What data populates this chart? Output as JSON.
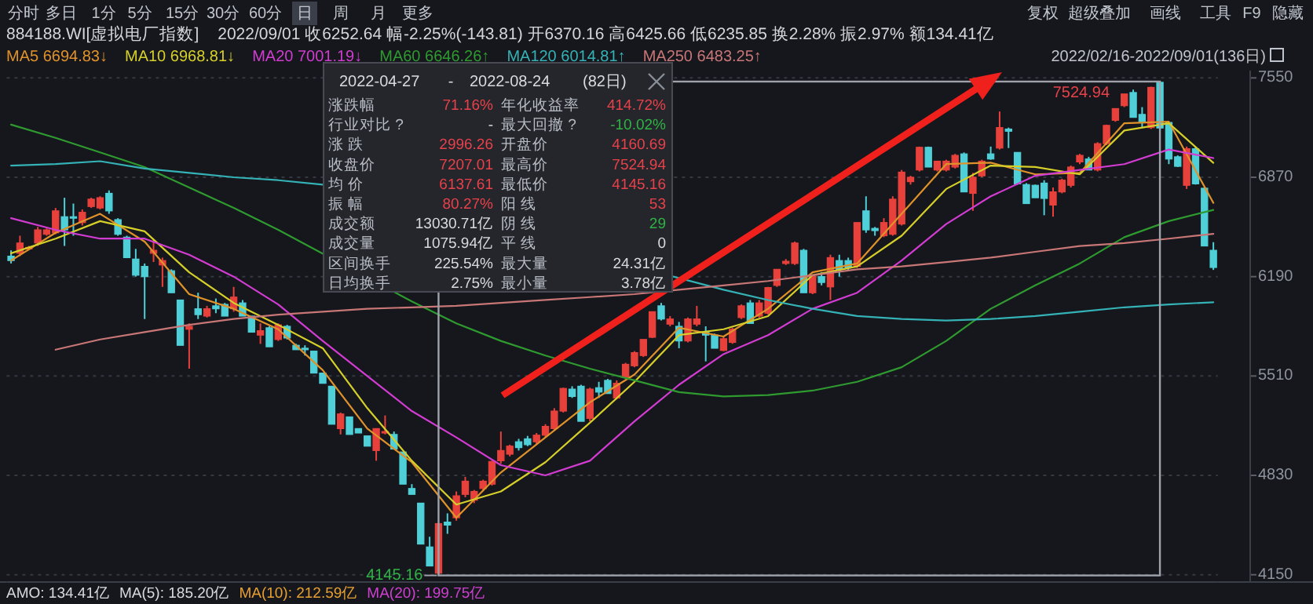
{
  "chart_data": {
    "type": "candlestick",
    "title": "884188.WI[虚拟电厂指数]",
    "subtitle": "2022/09/01 收6252.64 幅-2.25%(-143.81) 开6370.16 高6425.66 低6235.85 换2.28% 振2.97% 额134.41亿",
    "categories": [
      null,
      null,
      null,
      null,
      null,
      null,
      null,
      null,
      null,
      null,
      null,
      null,
      null,
      null,
      null,
      null,
      null,
      null,
      null,
      null,
      null,
      null,
      null,
      null,
      null,
      null,
      null,
      null,
      null,
      null,
      null,
      null,
      null,
      null,
      null,
      null,
      null,
      null,
      null,
      null,
      null,
      null,
      null,
      null,
      null,
      null,
      null,
      null,
      null,
      null,
      null,
      null,
      null,
      null,
      null,
      null,
      null,
      null,
      null,
      null,
      null,
      null,
      null,
      null,
      null,
      null,
      null,
      null,
      null,
      null,
      null,
      null,
      null,
      null,
      null,
      null,
      null,
      null,
      null,
      null,
      null,
      null,
      null,
      null,
      null,
      null,
      null,
      null,
      null,
      null,
      null,
      null,
      null,
      null,
      null,
      null,
      null,
      null,
      null,
      null,
      null,
      null,
      null,
      null,
      null,
      null,
      null,
      null,
      null,
      null,
      null,
      null,
      null,
      null,
      null,
      null,
      null,
      null,
      null,
      null,
      null,
      null,
      null,
      null,
      null,
      null,
      null,
      null,
      null,
      null,
      null,
      null,
      null,
      null,
      null,
      null
    ],
    "ohlc": [
      [
        6330,
        6370,
        6280,
        6300
      ],
      [
        6350,
        6470,
        6330,
        6420
      ],
      [
        6380,
        6400,
        6370,
        6390
      ],
      [
        6420,
        6530,
        6400,
        6510
      ],
      [
        6480,
        6520,
        6470,
        6510
      ],
      [
        6490,
        6660,
        6480,
        6640
      ],
      [
        6600,
        6730,
        6400,
        6510
      ],
      [
        6600,
        6690,
        6470,
        6590
      ],
      [
        6560,
        6650,
        6540,
        6630
      ],
      [
        6670,
        6730,
        6660,
        6720
      ],
      [
        6660,
        6740,
        6650,
        6730
      ],
      [
        6760,
        6780,
        6620,
        6640
      ],
      [
        6580,
        6590,
        6470,
        6480
      ],
      [
        6460,
        6470,
        6320,
        6320
      ],
      [
        6310,
        6380,
        6190,
        6200
      ],
      [
        6260,
        6280,
        5900,
        6190
      ],
      [
        6350,
        6440,
        6290,
        6370
      ],
      [
        6270,
        6320,
        6120,
        6300
      ],
      [
        6230,
        6240,
        6080,
        6080
      ],
      [
        6030,
        6030,
        5720,
        5720
      ],
      [
        5830,
        5870,
        5560,
        5850
      ],
      [
        5970,
        6080,
        5900,
        5930
      ],
      [
        5920,
        5990,
        5910,
        5970
      ],
      [
        5990,
        6040,
        5940,
        5970
      ],
      [
        6000,
        6010,
        5920,
        5920
      ],
      [
        5970,
        6120,
        5950,
        6050
      ],
      [
        6010,
        6030,
        5920,
        5920
      ],
      [
        5920,
        5920,
        5810,
        5810
      ],
      [
        5790,
        5870,
        5730,
        5820
      ],
      [
        5840,
        5850,
        5710,
        5710
      ],
      [
        5760,
        5870,
        5750,
        5860
      ],
      [
        5850,
        5860,
        5760,
        5770
      ],
      [
        5720,
        5730,
        5690,
        5690
      ],
      [
        5700,
        5720,
        5650,
        5690
      ],
      [
        5680,
        5680,
        5530,
        5530
      ],
      [
        5530,
        5530,
        5460,
        5460
      ],
      [
        5440,
        5440,
        5180,
        5180
      ],
      [
        5150,
        5260,
        5110,
        5250
      ],
      [
        5230,
        5230,
        5110,
        5110
      ],
      [
        5150,
        5150,
        5120,
        5120
      ],
      [
        5100,
        5100,
        5030,
        5030
      ],
      [
        5000,
        5150,
        4930,
        5150
      ],
      [
        5120,
        5240,
        5110,
        5130
      ],
      [
        5110,
        5130,
        5010,
        5010
      ],
      [
        4990,
        4990,
        4770,
        4770
      ],
      [
        4740,
        4770,
        4700,
        4700
      ],
      [
        4640,
        4640,
        4360,
        4360
      ],
      [
        4340,
        4410,
        4210,
        4210
      ],
      [
        4160.69,
        4500,
        4145.16,
        4500
      ],
      [
        4510,
        4570,
        4430,
        4490
      ],
      [
        4540,
        4720,
        4520,
        4690
      ],
      [
        4700,
        4820,
        4680,
        4790
      ],
      [
        4660,
        4730,
        4640,
        4720
      ],
      [
        4740,
        4800,
        4720,
        4790
      ],
      [
        4770,
        4930,
        4760,
        4925
      ],
      [
        4930,
        5130,
        4910,
        5000
      ],
      [
        4975,
        5040,
        4960,
        5030
      ],
      [
        5060,
        5080,
        5000,
        5020
      ],
      [
        5080,
        5100,
        5030,
        5040
      ],
      [
        5060,
        5120,
        5040,
        5105
      ],
      [
        5105,
        5180,
        5090,
        5165
      ],
      [
        5150,
        5290,
        5140,
        5270
      ],
      [
        5270,
        5430,
        5260,
        5425
      ],
      [
        5420,
        5440,
        5360,
        5370
      ],
      [
        5440,
        5450,
        5200,
        5200
      ],
      [
        5220,
        5430,
        5200,
        5420
      ],
      [
        5430,
        5470,
        5360,
        5400
      ],
      [
        5480,
        5490,
        5390,
        5390
      ],
      [
        5360,
        5480,
        5350,
        5460
      ],
      [
        5500,
        5600,
        5490,
        5590
      ],
      [
        5580,
        5680,
        5570,
        5670
      ],
      [
        5650,
        5760,
        5640,
        5760
      ],
      [
        5775,
        5950,
        5770,
        5950
      ],
      [
        5990,
        6010,
        5890,
        5900
      ],
      [
        5865,
        5920,
        5850,
        5900
      ],
      [
        5850,
        5880,
        5700,
        5750
      ],
      [
        5750,
        5910,
        5740,
        5900
      ],
      [
        5865,
        5990,
        5850,
        5900
      ],
      [
        5810,
        5850,
        5610,
        5790
      ],
      [
        5790,
        5800,
        5700,
        5700
      ],
      [
        5685,
        5780,
        5680,
        5765
      ],
      [
        5740,
        5840,
        5730,
        5830
      ],
      [
        5910,
        6000,
        5900,
        5990
      ],
      [
        6010,
        6030,
        5870,
        5870
      ],
      [
        5920,
        6030,
        5910,
        6010
      ],
      [
        5940,
        6120,
        5930,
        6115
      ],
      [
        6130,
        6240,
        6120,
        6240
      ],
      [
        6280,
        6310,
        6270,
        6295
      ],
      [
        6280,
        6430,
        6270,
        6420
      ],
      [
        6370,
        6380,
        6080,
        6080
      ],
      [
        6080,
        6190,
        6070,
        6190
      ],
      [
        6190,
        6220,
        6130,
        6150
      ],
      [
        6120,
        6340,
        6030,
        6320
      ],
      [
        6300,
        6340,
        6190,
        6240
      ],
      [
        6300,
        6320,
        6230,
        6250
      ],
      [
        6260,
        6560,
        6250,
        6560
      ],
      [
        6640,
        6740,
        6490,
        6510
      ],
      [
        6520,
        6530,
        6470,
        6505
      ],
      [
        6470,
        6590,
        6460,
        6560
      ],
      [
        6480,
        6740,
        6470,
        6720
      ],
      [
        6550,
        6920,
        6540,
        6905
      ],
      [
        6840,
        6880,
        6820,
        6870
      ],
      [
        6920,
        7080,
        6910,
        7075
      ],
      [
        7075,
        7080,
        6940,
        6940
      ],
      [
        6920,
        6980,
        6910,
        6980
      ],
      [
        6920,
        6990,
        6910,
        6980
      ],
      [
        6940,
        7030,
        6930,
        7020
      ],
      [
        7030,
        7040,
        6770,
        6770
      ],
      [
        6760,
        6900,
        6640,
        6870
      ],
      [
        6880,
        6990,
        6870,
        6980
      ],
      [
        7030,
        7080,
        6990,
        6995
      ],
      [
        7070,
        7320,
        7060,
        7210
      ],
      [
        7200,
        7210,
        7070,
        7185
      ],
      [
        7040,
        7040,
        6820,
        6825
      ],
      [
        6820,
        6830,
        6690,
        6690
      ],
      [
        6815,
        6820,
        6730,
        6730
      ],
      [
        6830,
        6850,
        6610,
        6725
      ],
      [
        6680,
        6800,
        6600,
        6770
      ],
      [
        6770,
        6860,
        6760,
        6850
      ],
      [
        6815,
        6950,
        6800,
        6940
      ],
      [
        6975,
        7030,
        6960,
        7020
      ],
      [
        6995,
        7010,
        6920,
        6920
      ],
      [
        6920,
        7110,
        6910,
        7100
      ],
      [
        7100,
        7230,
        7090,
        7225
      ],
      [
        7260,
        7340,
        7250,
        7340
      ],
      [
        7360,
        7440,
        7350,
        7440
      ],
      [
        7450,
        7470,
        7280,
        7280
      ],
      [
        7300,
        7350,
        7210,
        7250
      ],
      [
        7210,
        7490,
        7200,
        7485
      ],
      [
        7520,
        7524.94,
        7190,
        7207.01
      ],
      [
        7245,
        7250,
        6960,
        6995
      ],
      [
        7010,
        7020,
        6940,
        6945
      ],
      [
        6815,
        7080,
        6790,
        7065
      ],
      [
        7065,
        7080,
        6820,
        6825
      ],
      [
        6795,
        6800,
        6400,
        6400
      ],
      [
        6370.16,
        6425.66,
        6235.85,
        6252.64
      ]
    ],
    "series": [
      {
        "type": "line",
        "name": "MA5 6694.83↓",
        "color": "#e0922a",
        "values": [
          6300,
          null,
          null,
          null,
          null,
          6490,
          null,
          null,
          null,
          null,
          6620,
          null,
          null,
          null,
          null,
          6430,
          null,
          null,
          null,
          null,
          6070,
          null,
          null,
          null,
          null,
          5970,
          null,
          null,
          null,
          null,
          5830,
          null,
          null,
          null,
          null,
          5550,
          null,
          null,
          null,
          null,
          5150,
          null,
          null,
          null,
          null,
          4920,
          null,
          null,
          null,
          null,
          4540,
          null,
          null,
          null,
          null,
          4850,
          null,
          null,
          null,
          null,
          5090,
          null,
          null,
          null,
          null,
          5330,
          null,
          null,
          null,
          null,
          5520,
          null,
          null,
          null,
          null,
          5840,
          null,
          null,
          null,
          null,
          5780,
          null,
          null,
          null,
          null,
          5970,
          null,
          null,
          null,
          null,
          6220,
          null,
          null,
          null,
          null,
          6280,
          null,
          null,
          null,
          null,
          6620,
          null,
          null,
          null,
          null,
          6960,
          null,
          null,
          null,
          null,
          6970,
          null,
          null,
          null,
          null,
          6890,
          null,
          null,
          null,
          null,
          6900,
          null,
          null,
          null,
          null,
          7240,
          null,
          null,
          null,
          null,
          7250,
          null,
          null,
          null,
          null,
          6694.83
        ]
      },
      {
        "type": "line",
        "name": "MA10 6968.81↓",
        "color": "#d6cf2a",
        "values": [
          6350,
          null,
          null,
          null,
          null,
          6450,
          null,
          null,
          null,
          null,
          6570,
          null,
          null,
          null,
          null,
          6500,
          null,
          null,
          null,
          null,
          6220,
          null,
          null,
          null,
          null,
          6010,
          null,
          null,
          null,
          null,
          5860,
          null,
          null,
          null,
          null,
          5700,
          null,
          null,
          null,
          null,
          5290,
          null,
          null,
          null,
          null,
          4930,
          null,
          null,
          null,
          null,
          4630,
          null,
          null,
          null,
          null,
          4720,
          null,
          null,
          null,
          null,
          4920,
          null,
          null,
          null,
          null,
          5190,
          null,
          null,
          null,
          null,
          5470,
          null,
          null,
          null,
          null,
          5790,
          null,
          null,
          null,
          null,
          5830,
          null,
          null,
          null,
          null,
          5920,
          null,
          null,
          null,
          null,
          6200,
          null,
          null,
          null,
          null,
          6260,
          null,
          null,
          null,
          null,
          6470,
          null,
          null,
          null,
          null,
          6790,
          null,
          null,
          null,
          null,
          6950,
          null,
          null,
          null,
          null,
          6940,
          null,
          null,
          null,
          null,
          6890,
          null,
          null,
          null,
          null,
          7190,
          null,
          null,
          null,
          null,
          7240,
          null,
          null,
          null,
          null,
          6968.81
        ]
      },
      {
        "type": "line",
        "name": "MA20 7001.19↓",
        "color": "#d23cd2",
        "values": [
          6590,
          null,
          null,
          null,
          null,
          6510,
          null,
          null,
          null,
          null,
          6450,
          null,
          null,
          null,
          null,
          6450,
          null,
          null,
          null,
          null,
          6340,
          null,
          null,
          null,
          null,
          6190,
          null,
          null,
          null,
          null,
          6000,
          null,
          null,
          null,
          null,
          5750,
          null,
          null,
          null,
          null,
          5510,
          null,
          null,
          null,
          null,
          5270,
          null,
          null,
          null,
          null,
          5090,
          null,
          null,
          null,
          null,
          4900,
          null,
          null,
          null,
          null,
          4830,
          null,
          null,
          null,
          null,
          4930,
          null,
          null,
          null,
          null,
          5200,
          null,
          null,
          null,
          null,
          5450,
          null,
          null,
          null,
          null,
          5660,
          null,
          null,
          null,
          null,
          5790,
          null,
          null,
          null,
          null,
          5970,
          null,
          null,
          null,
          null,
          6080,
          null,
          null,
          null,
          null,
          6300,
          null,
          null,
          null,
          null,
          6550,
          null,
          null,
          null,
          null,
          6740,
          null,
          null,
          null,
          null,
          6880,
          null,
          null,
          null,
          null,
          6920,
          null,
          null,
          null,
          null,
          6960,
          null,
          null,
          null,
          null,
          7060,
          null,
          null,
          null,
          null,
          7001.19
        ]
      },
      {
        "type": "line",
        "name": "MA60 6646.26↑",
        "color": "#2f9a2f",
        "values": [
          7230,
          null,
          null,
          null,
          null,
          7140,
          null,
          null,
          null,
          null,
          7040,
          null,
          null,
          null,
          null,
          6940,
          null,
          null,
          null,
          null,
          6800,
          null,
          null,
          null,
          null,
          6660,
          null,
          null,
          null,
          null,
          6510,
          null,
          null,
          null,
          null,
          null,
          null,
          null,
          null,
          null,
          null,
          null,
          null,
          null,
          null,
          6020,
          null,
          null,
          null,
          null,
          5870,
          null,
          null,
          null,
          null,
          5750,
          null,
          null,
          null,
          null,
          5650,
          null,
          null,
          null,
          null,
          5560,
          null,
          null,
          null,
          null,
          5480,
          null,
          null,
          null,
          null,
          5400,
          null,
          null,
          null,
          null,
          5370,
          null,
          null,
          null,
          null,
          5380,
          null,
          null,
          null,
          null,
          5410,
          null,
          null,
          null,
          null,
          5470,
          null,
          null,
          null,
          null,
          5570,
          null,
          null,
          null,
          null,
          5750,
          null,
          null,
          null,
          null,
          5970,
          null,
          null,
          null,
          null,
          6130,
          null,
          null,
          null,
          null,
          6280,
          null,
          null,
          null,
          null,
          6460,
          null,
          null,
          null,
          null,
          6570,
          null,
          null,
          null,
          null,
          6646.26
        ]
      },
      {
        "type": "line",
        "name": "MA120 6014.81↑",
        "color": "#34b2b6",
        "values": [
          6950,
          null,
          null,
          null,
          null,
          6960,
          null,
          null,
          null,
          null,
          6980,
          null,
          null,
          null,
          null,
          6930,
          null,
          null,
          null,
          null,
          6900,
          null,
          null,
          null,
          null,
          6870,
          null,
          null,
          null,
          null,
          6850,
          null,
          null,
          null,
          null,
          6820,
          null,
          null,
          null,
          null,
          null,
          null,
          null,
          null,
          null,
          null,
          null,
          null,
          null,
          null,
          null,
          null,
          null,
          null,
          null,
          null,
          null,
          null,
          null,
          null,
          null,
          null,
          null,
          null,
          null,
          null,
          null,
          null,
          null,
          null,
          null,
          null,
          null,
          null,
          null,
          null,
          null,
          null,
          null,
          null,
          6100,
          null,
          null,
          null,
          null,
          6030,
          null,
          null,
          null,
          null,
          5970,
          null,
          null,
          null,
          null,
          5920,
          null,
          null,
          null,
          null,
          5900,
          null,
          null,
          null,
          null,
          5890,
          null,
          null,
          null,
          null,
          5900,
          null,
          null,
          null,
          null,
          5920,
          null,
          null,
          null,
          null,
          5950,
          null,
          null,
          null,
          null,
          5980,
          null,
          null,
          null,
          null,
          6000,
          null,
          null,
          null,
          null,
          6014.81
        ]
      },
      {
        "type": "line",
        "name": "MA250 6483.25↑",
        "color": "#c87676",
        "values": [
          null,
          null,
          null,
          null,
          null,
          5690,
          null,
          null,
          null,
          null,
          5760,
          null,
          null,
          null,
          null,
          5810,
          null,
          null,
          null,
          null,
          5860,
          null,
          null,
          null,
          null,
          5900,
          null,
          null,
          null,
          null,
          5930,
          null,
          null,
          null,
          null,
          5950,
          null,
          null,
          null,
          null,
          5970,
          null,
          null,
          null,
          null,
          5980,
          null,
          null,
          null,
          null,
          5990,
          null,
          null,
          null,
          null,
          6010,
          null,
          null,
          null,
          null,
          6030,
          null,
          null,
          null,
          null,
          6050,
          null,
          null,
          null,
          null,
          6070,
          null,
          null,
          null,
          null,
          6100,
          null,
          null,
          null,
          null,
          6130,
          null,
          null,
          null,
          null,
          6160,
          null,
          null,
          null,
          null,
          6200,
          null,
          null,
          null,
          null,
          6240,
          null,
          null,
          null,
          null,
          6260,
          null,
          null,
          null,
          null,
          6290,
          null,
          null,
          null,
          null,
          6320,
          null,
          null,
          null,
          null,
          6360,
          null,
          null,
          null,
          null,
          6400,
          null,
          null,
          null,
          null,
          6420,
          null,
          null,
          null,
          null,
          6450,
          null,
          null,
          null,
          null,
          6483.25
        ]
      }
    ],
    "ylim": [
      4100,
      7600
    ],
    "yticks": [
      7550,
      6870,
      6190,
      5510,
      4830,
      4150
    ],
    "grid": "y",
    "legend": "top left",
    "tick_labels": "y",
    "annotations": [
      "分时",
      "多日",
      "1分",
      "5分",
      "15分",
      "30分",
      "60分",
      "日",
      "周",
      "月",
      "更多",
      "复权",
      "超级叠加",
      "画线",
      "工具",
      "F9",
      "隐藏",
      "2022/02/16-2022/09/01(136日)",
      "2022-04-27",
      "-",
      "2022-08-24",
      "(82日)",
      "涨跌幅",
      "71.16%",
      "年化收益率",
      "414.72%",
      "行业对比 ?",
      "-",
      "最大回撤 ?",
      "-10.02%",
      "涨 跌",
      "2996.26",
      "开盘价",
      "4160.69",
      "收盘价",
      "7207.01",
      "最高价",
      "7524.94",
      "均 价",
      "6137.61",
      "最低价",
      "4145.16",
      "振 幅",
      "80.27%",
      "阳 线",
      "53",
      "成交额",
      "13030.71亿",
      "阴 线",
      "29",
      "成交量",
      "1075.94亿",
      "平 线",
      "0",
      "区间换手",
      "225.54%",
      "最大量",
      "24.31亿",
      "日均换手",
      "2.75%",
      "最小量",
      "3.78亿",
      "AMO: 134.41亿",
      "MA(5): 185.20亿",
      "MA(10): 212.59亿",
      "MA(20): 199.75亿",
      "7524.94",
      "4145.16"
    ]
  }
}
